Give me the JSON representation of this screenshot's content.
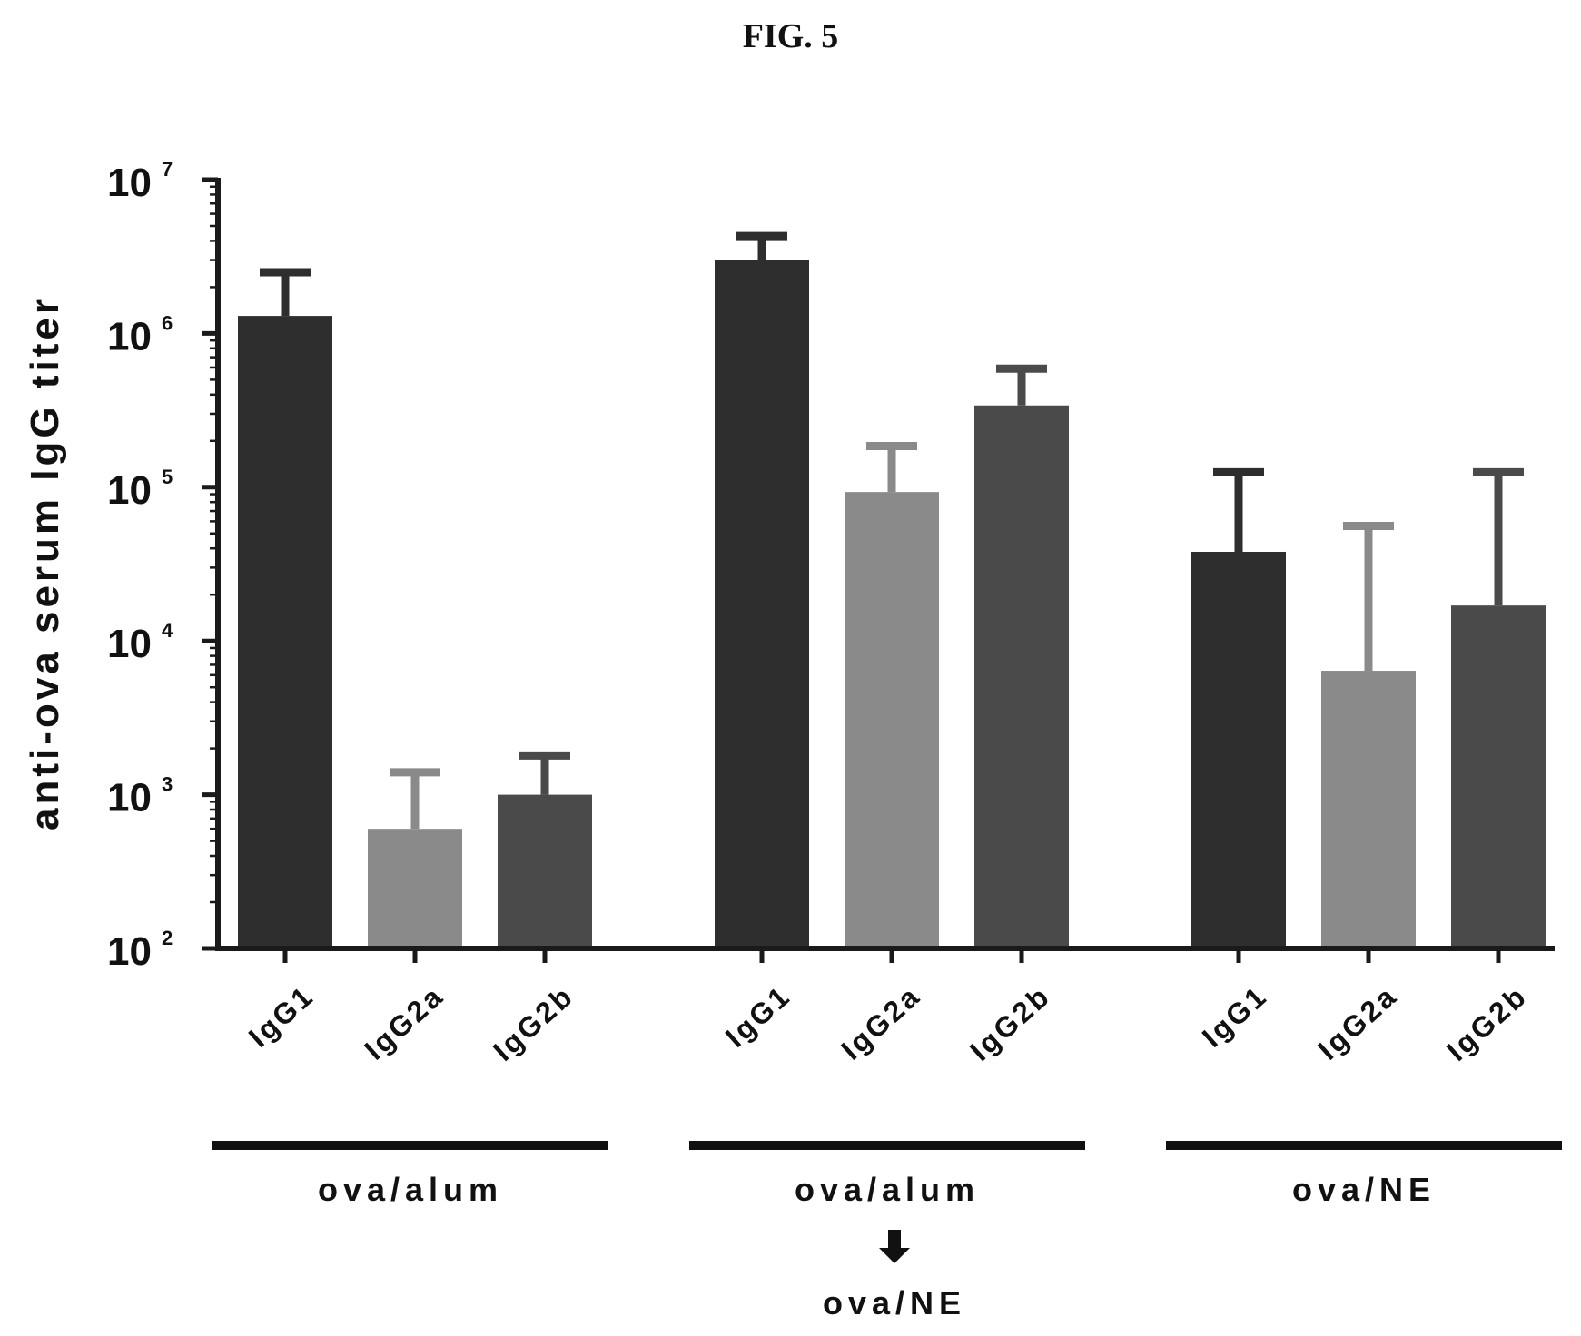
{
  "figure_label": "FIG. 5",
  "colors": {
    "dark": "#2e2e2e",
    "light": "#8a8a8a",
    "medium": "#4a4a4a",
    "axis": "#1a1a1a"
  },
  "chart_data": {
    "type": "bar",
    "ylabel": "anti-ova serum IgG titer",
    "xlabel": "",
    "yscale": "log",
    "ylim": [
      100,
      10000000
    ],
    "ytick_labels": [
      {
        "base": "10",
        "exp": "2"
      },
      {
        "base": "10",
        "exp": "3"
      },
      {
        "base": "10",
        "exp": "4"
      },
      {
        "base": "10",
        "exp": "5"
      },
      {
        "base": "10",
        "exp": "6"
      },
      {
        "base": "10",
        "exp": "7"
      }
    ],
    "grid": false,
    "groups": [
      {
        "label_lines": [
          "ova/alum"
        ],
        "arrow": false,
        "bars": [
          {
            "category": "IgG1",
            "value": 1300000,
            "err_upper": 2500000,
            "color": "dark"
          },
          {
            "category": "IgG2a",
            "value": 600,
            "err_upper": 1400,
            "color": "light"
          },
          {
            "category": "IgG2b",
            "value": 1000,
            "err_upper": 1800,
            "color": "medium"
          }
        ]
      },
      {
        "label_lines": [
          "ova/alum",
          "ova/NE"
        ],
        "arrow": true,
        "bars": [
          {
            "category": "IgG1",
            "value": 3000000,
            "err_upper": 4300000,
            "color": "dark"
          },
          {
            "category": "IgG2a",
            "value": 93000,
            "err_upper": 185000,
            "color": "light"
          },
          {
            "category": "IgG2b",
            "value": 340000,
            "err_upper": 590000,
            "color": "medium"
          }
        ]
      },
      {
        "label_lines": [
          "ova/NE"
        ],
        "arrow": false,
        "bars": [
          {
            "category": "IgG1",
            "value": 38000,
            "err_upper": 125000,
            "color": "dark"
          },
          {
            "category": "IgG2a",
            "value": 6400,
            "err_upper": 56000,
            "color": "light"
          },
          {
            "category": "IgG2b",
            "value": 17000,
            "err_upper": 125000,
            "color": "medium"
          }
        ]
      }
    ]
  }
}
